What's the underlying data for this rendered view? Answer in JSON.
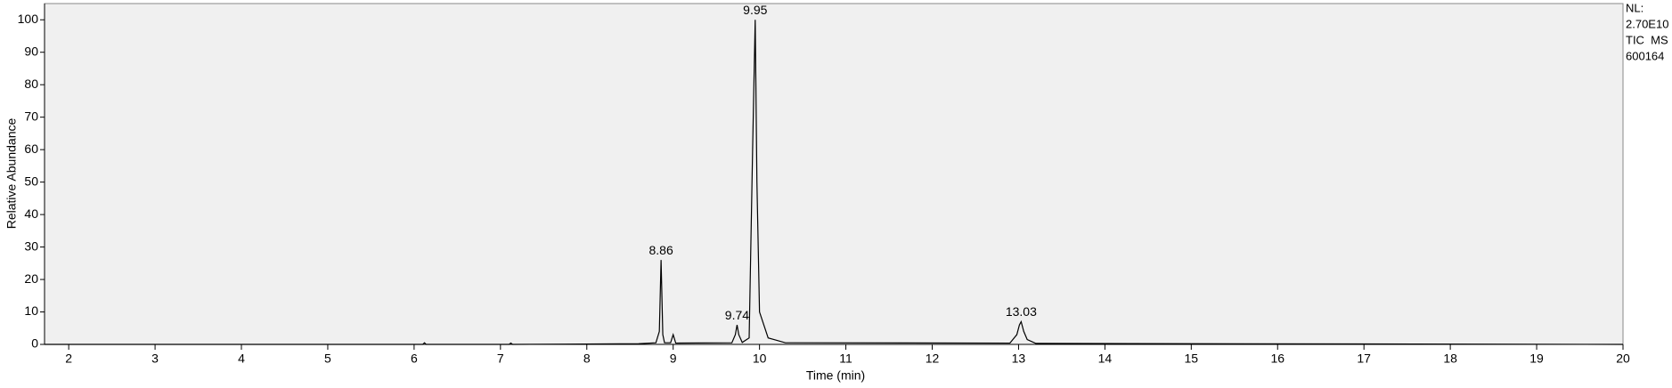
{
  "chart_data": {
    "type": "line",
    "xlabel": "Time (min)",
    "ylabel": "Relative Abundance",
    "info": [
      "NL:",
      "2.70E10",
      "TIC  MS",
      "600164"
    ],
    "x": [
      1.72,
      6.1,
      6.12,
      6.14,
      7.1,
      7.12,
      7.14,
      8.6,
      8.8,
      8.84,
      8.86,
      8.88,
      8.9,
      8.97,
      9.0,
      9.03,
      9.68,
      9.72,
      9.74,
      9.76,
      9.8,
      9.88,
      9.92,
      9.95,
      9.97,
      10.0,
      10.1,
      10.3,
      12.9,
      12.98,
      13.01,
      13.03,
      13.06,
      13.1,
      13.2,
      20
    ],
    "series": [
      {
        "color": "#000000",
        "values": [
          0,
          0,
          0.5,
          0,
          0,
          0.4,
          0,
          0.2,
          0.5,
          4,
          26,
          3,
          0.5,
          0.5,
          3,
          0.4,
          0.5,
          3,
          6,
          3,
          0.6,
          2,
          60,
          100,
          50,
          10,
          2,
          0.5,
          0.4,
          3,
          6,
          7,
          4,
          1.5,
          0.3,
          0
        ]
      }
    ],
    "annotations": [
      {
        "x": 8.86,
        "y": 26
      },
      {
        "x": 9.74,
        "y": 6
      },
      {
        "x": 9.95,
        "y": 100
      },
      {
        "x": 13.03,
        "y": 7
      }
    ],
    "xlim": [
      1.72,
      20
    ],
    "ylim": [
      0,
      105
    ],
    "xticks": [
      2,
      3,
      4,
      5,
      6,
      7,
      8,
      9,
      10,
      11,
      12,
      13,
      14,
      15,
      16,
      17,
      18,
      19,
      20
    ],
    "yticks": [
      0,
      10,
      20,
      30,
      40,
      50,
      60,
      70,
      80,
      90,
      100
    ],
    "background": "#f0f0f0"
  }
}
